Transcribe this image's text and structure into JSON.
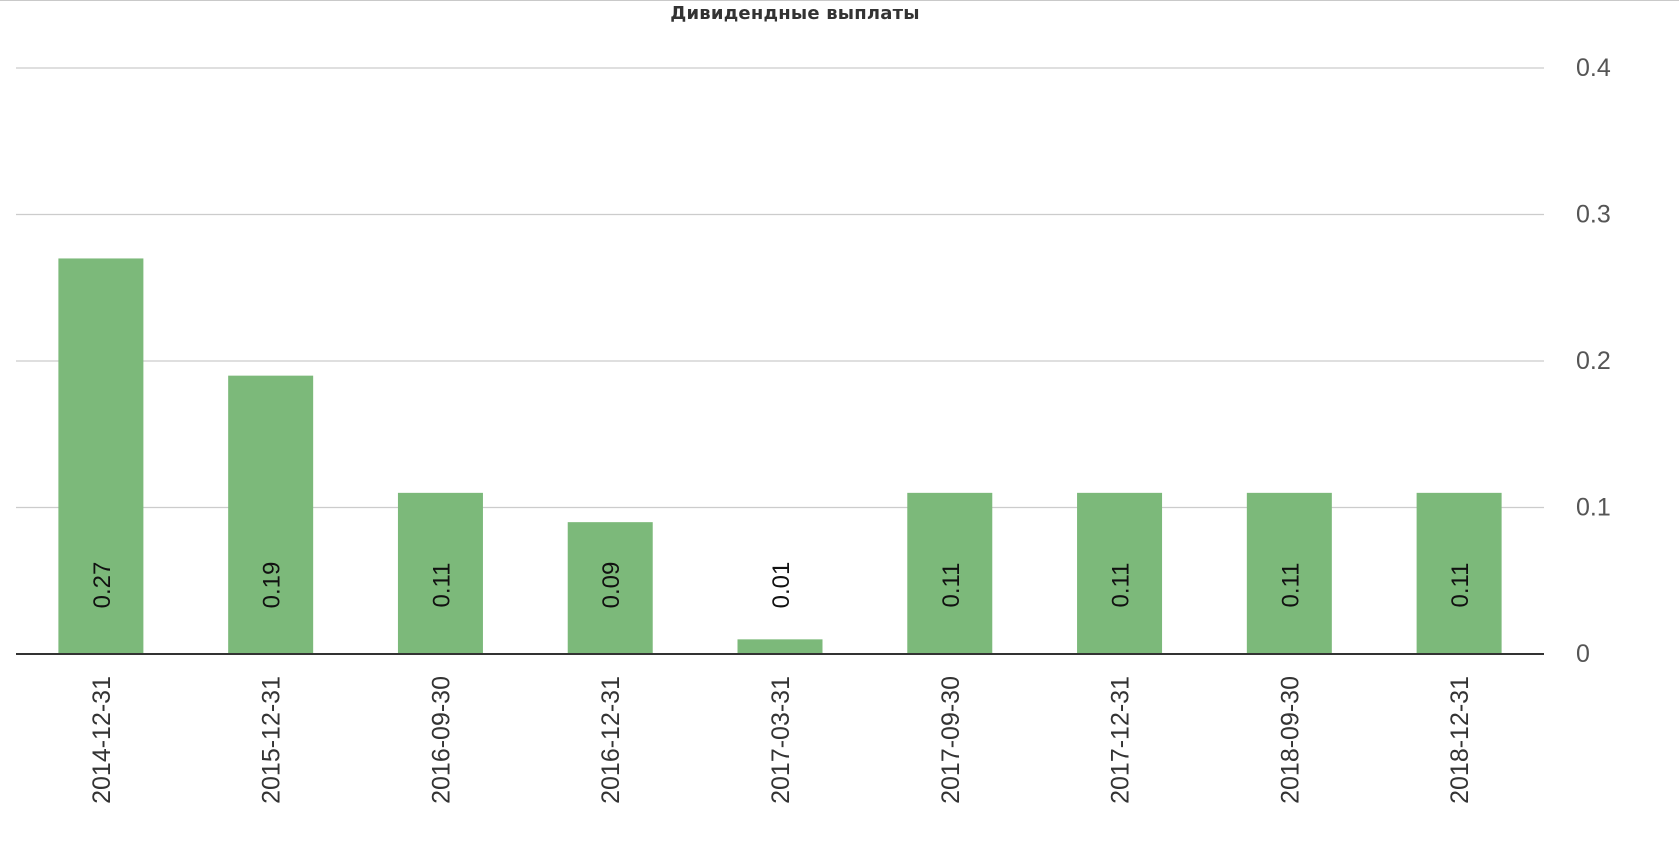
{
  "colors": {
    "bar": "#7cb97a",
    "grid": "#cccccc",
    "baseline": "#333333"
  },
  "chart_data": {
    "type": "bar",
    "title": "Дивидендные выплаты",
    "categories": [
      "2014-12-31",
      "2015-12-31",
      "2016-09-30",
      "2016-12-31",
      "2017-03-31",
      "2017-09-30",
      "2017-12-31",
      "2018-09-30",
      "2018-12-31"
    ],
    "values": [
      0.27,
      0.19,
      0.11,
      0.09,
      0.01,
      0.11,
      0.11,
      0.11,
      0.11
    ],
    "value_labels": [
      "0.27",
      "0.19",
      "0.11",
      "0.09",
      "0.01",
      "0.11",
      "0.11",
      "0.11",
      "0.11"
    ],
    "ylim": [
      0,
      0.4
    ],
    "yticks": [
      0,
      0.1,
      0.2,
      0.3,
      0.4
    ],
    "ytick_labels": [
      "0",
      "0.1",
      "0.2",
      "0.3",
      "0.4"
    ],
    "y_axis_side": "right",
    "grid": true,
    "legend": false
  }
}
